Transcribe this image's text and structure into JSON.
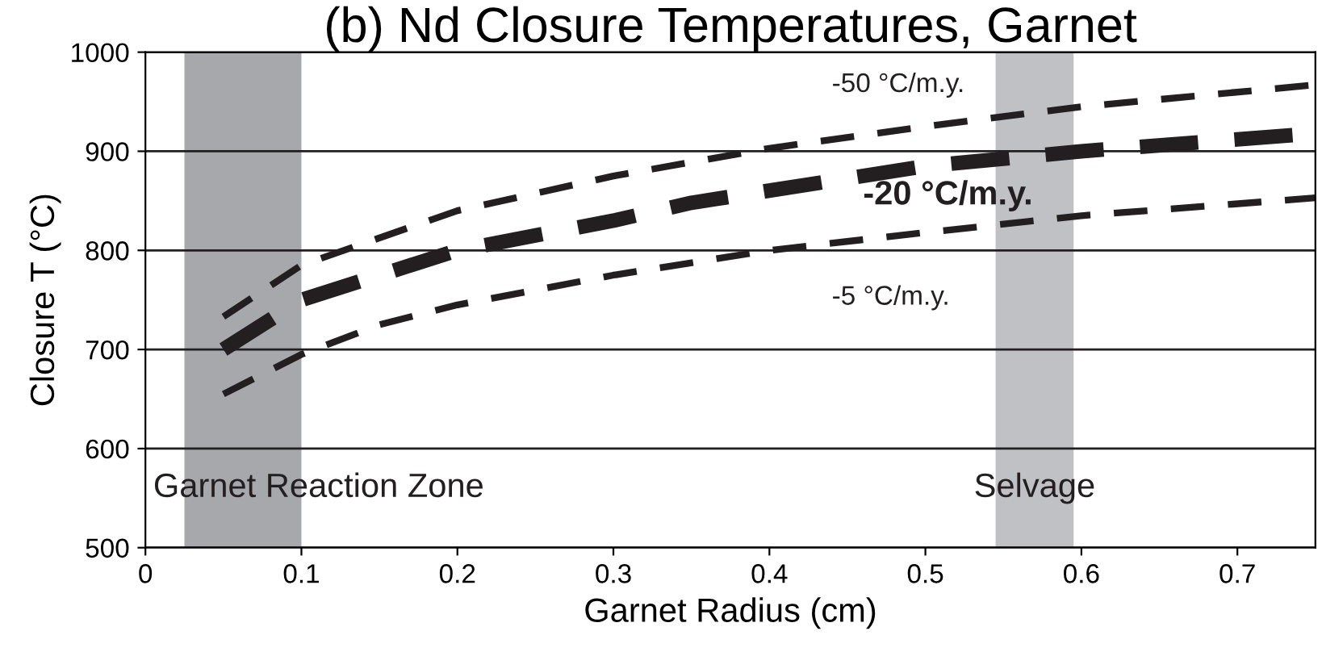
{
  "chart_data": {
    "type": "line",
    "title": "(b) Nd Closure Temperatures, Garnet",
    "xlabel": "Garnet Radius (cm)",
    "ylabel": "Closure T (°C)",
    "xlim": [
      0,
      0.75
    ],
    "xticks": [
      0,
      0.1,
      0.2,
      0.3,
      0.4,
      0.5,
      0.6,
      0.7
    ],
    "ylim": [
      500,
      1000
    ],
    "yticks": [
      500,
      600,
      700,
      800,
      900,
      1000
    ],
    "grid": "y",
    "line_style": "dashed",
    "series": [
      {
        "name": "-50 °C/m.y.",
        "color": "#231f20",
        "x": [
          0.05,
          0.1,
          0.2,
          0.3,
          0.4,
          0.5,
          0.6,
          0.75
        ],
        "values": [
          733,
          785,
          840,
          875,
          903,
          925,
          945,
          967
        ]
      },
      {
        "name": "-20 °C/m.y.",
        "color": "#231f20",
        "x": [
          0.05,
          0.1,
          0.2,
          0.3,
          0.35,
          0.5,
          0.6,
          0.75
        ],
        "values": [
          700,
          750,
          800,
          830,
          848,
          885,
          900,
          918
        ]
      },
      {
        "name": "-5 °C/m.y.",
        "color": "#231f20",
        "x": [
          0.05,
          0.1,
          0.15,
          0.2,
          0.3,
          0.4,
          0.5,
          0.6,
          0.75
        ],
        "values": [
          655,
          695,
          725,
          745,
          775,
          800,
          818,
          835,
          853
        ]
      }
    ],
    "bands": [
      {
        "axis": "x",
        "from": 0.025,
        "to": 0.1,
        "label": "Garnet Reaction Zone",
        "color": "#a7a8ab"
      },
      {
        "axis": "x",
        "from": 0.545,
        "to": 0.595,
        "label": "Selvage",
        "color": "#c0c1c4"
      }
    ]
  }
}
